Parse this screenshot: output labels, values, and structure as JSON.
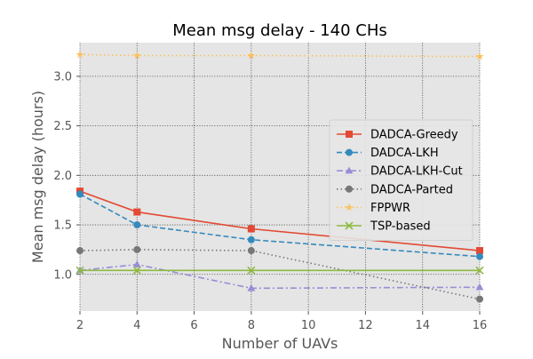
{
  "chart_data": {
    "type": "line",
    "title": "Mean msg delay - 140 CHs",
    "xlabel": "Number of UAVs",
    "ylabel": "Mean msg delay (hours)",
    "xlim": [
      2,
      16
    ],
    "ylim": [
      0.63,
      3.34
    ],
    "xticks": [
      2,
      4,
      6,
      8,
      10,
      12,
      14,
      16
    ],
    "yticks": [
      1.0,
      1.5,
      2.0,
      2.5,
      3.0
    ],
    "xtick_labels": [
      "2",
      "4",
      "6",
      "8",
      "10",
      "12",
      "14",
      "16"
    ],
    "ytick_labels": [
      "1.0",
      "1.5",
      "2.0",
      "2.5",
      "3.0"
    ],
    "grid": true,
    "legend_position": "right",
    "x": [
      2,
      4,
      8,
      16
    ],
    "series": [
      {
        "name": "DADCA-Greedy",
        "values": [
          1.84,
          1.63,
          1.46,
          1.24
        ],
        "color": "#E24A33",
        "dash": "solid",
        "marker": "square"
      },
      {
        "name": "DADCA-LKH",
        "values": [
          1.81,
          1.5,
          1.35,
          1.18
        ],
        "color": "#348ABD",
        "dash": "dashed",
        "marker": "circle"
      },
      {
        "name": "DADCA-LKH-Cut",
        "values": [
          1.04,
          1.1,
          0.86,
          0.87
        ],
        "color": "#988ED5",
        "dash": "dashdot",
        "marker": "triangle"
      },
      {
        "name": "DADCA-Parted",
        "values": [
          1.24,
          1.25,
          1.24,
          0.75
        ],
        "color": "#777777",
        "dash": "dotted",
        "marker": "circle"
      },
      {
        "name": "FPPWR",
        "values": [
          3.22,
          3.21,
          3.21,
          3.2
        ],
        "color": "#FBC15E",
        "dash": "dotted",
        "marker": "star"
      },
      {
        "name": "TSP-based",
        "values": [
          1.04,
          1.04,
          1.04,
          1.04
        ],
        "color": "#8EBA42",
        "dash": "solid",
        "marker": "x"
      }
    ]
  }
}
